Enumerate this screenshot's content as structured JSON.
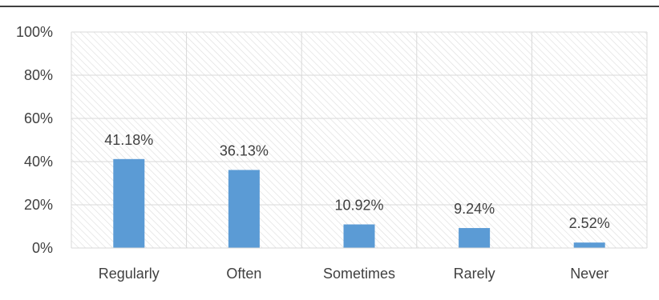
{
  "chart_data": {
    "type": "bar",
    "categories": [
      "Regularly",
      "Often",
      "Sometimes",
      "Rarely",
      "Never"
    ],
    "values": [
      41.18,
      36.13,
      10.92,
      9.24,
      2.52
    ],
    "data_labels": [
      "41.18%",
      "36.13%",
      "10.92%",
      "9.24%",
      "2.52%"
    ],
    "ylim": [
      0,
      100
    ],
    "yticks": [
      "0%",
      "20%",
      "40%",
      "60%",
      "80%",
      "100%"
    ],
    "ytick_values": [
      0,
      20,
      40,
      60,
      80,
      100
    ],
    "title": "",
    "xlabel": "",
    "ylabel": "",
    "grid": true,
    "legend": "none",
    "colors": {
      "bar": "#5b9bd5",
      "grid": "#d9d9d9",
      "hatch": "#d9d9d9",
      "text": "#404040",
      "border": "#000000"
    }
  }
}
